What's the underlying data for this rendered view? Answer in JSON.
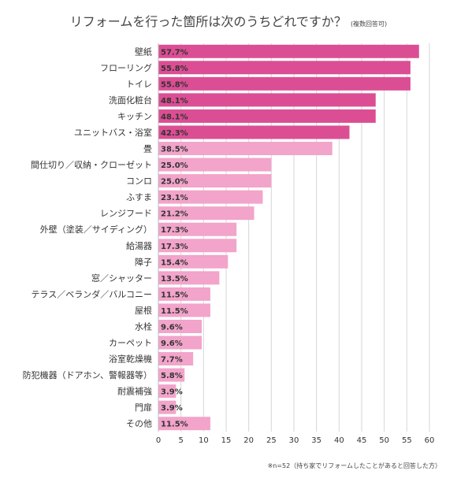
{
  "chart_data": {
    "type": "bar",
    "orientation": "horizontal",
    "title": "リフォームを行った箇所は次のうちどれですか？",
    "subtitle": "(複数回答可)",
    "footnote": "※n=52（持ち家でリフォームしたことがあると回答した方）",
    "xlim": [
      0,
      60
    ],
    "xticks": [
      "0",
      "5",
      "10",
      "15",
      "20",
      "25",
      "30",
      "35",
      "40",
      "45",
      "50",
      "55",
      "60"
    ],
    "grid": true,
    "categories": [
      "壁紙",
      "フローリング",
      "トイレ",
      "洗面化粧台",
      "キッチン",
      "ユニットバス・浴室",
      "畳",
      "間仕切り／収納・クローゼット",
      "コンロ",
      "ふすま",
      "レンジフード",
      "外壁（塗装／サイディング）",
      "給湯器",
      "障子",
      "窓／シャッター",
      "テラス／ベランダ／バルコニー",
      "屋根",
      "水栓",
      "カーペット",
      "浴室乾燥機",
      "防犯機器（ドアホン、警報器等）",
      "耐震補強",
      "門扉",
      "その他"
    ],
    "values": [
      57.7,
      55.8,
      55.8,
      48.1,
      48.1,
      42.3,
      38.5,
      25.0,
      25.0,
      23.1,
      21.2,
      17.3,
      17.3,
      15.4,
      13.5,
      11.5,
      11.5,
      9.6,
      9.6,
      7.7,
      5.8,
      3.9,
      3.9,
      11.5
    ],
    "value_labels": [
      "57.7%",
      "55.8%",
      "55.8%",
      "48.1%",
      "48.1%",
      "42.3%",
      "38.5%",
      "25.0%",
      "25.0%",
      "23.1%",
      "21.2%",
      "17.3%",
      "17.3%",
      "15.4%",
      "13.5%",
      "11.5%",
      "11.5%",
      "9.6%",
      "9.6%",
      "7.7%",
      "5.8%",
      "3.9%",
      "3.9%",
      "11.5%"
    ],
    "highlight_count": 6,
    "colors": {
      "highlight": "#DC4E94",
      "normal": "#F2A4CA",
      "grid": "#D6D6D6",
      "label": "#333333"
    }
  }
}
